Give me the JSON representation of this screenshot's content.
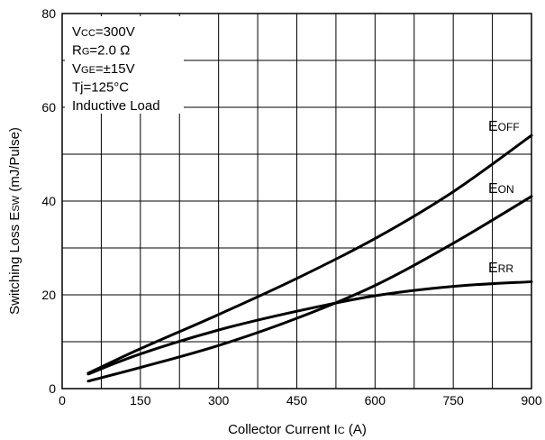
{
  "chart_data": {
    "type": "line",
    "xlabel": {
      "main": "Collector Current I",
      "sub": "C",
      "unit": "  (A)"
    },
    "ylabel": {
      "main": "Switching Loss E",
      "sub": "SW",
      "unit": " (mJ/Pulse)"
    },
    "xlim": [
      0,
      900
    ],
    "ylim": [
      0,
      80
    ],
    "x_ticks": [
      0,
      150,
      300,
      450,
      600,
      750,
      900
    ],
    "y_ticks": [
      0,
      20,
      40,
      60,
      80
    ],
    "x_grid_step": 75,
    "y_grid_step": 10,
    "grid": true,
    "conditions": [
      {
        "main": "V",
        "sub": "CC",
        "rest": "=300V"
      },
      {
        "main": "R",
        "sub": "G",
        "rest": "=2.0 Ω"
      },
      {
        "main": "V",
        "sub": "GE",
        "rest": "=±15V"
      },
      {
        "main": "Tj=125°C",
        "sub": "",
        "rest": ""
      },
      {
        "main": "Inductive Load",
        "sub": "",
        "rest": ""
      }
    ],
    "series": [
      {
        "main": "E",
        "sub": "OFF",
        "x": [
          50,
          150,
          300,
          450,
          600,
          750,
          900
        ],
        "y": [
          3.3,
          8.5,
          15.8,
          23.5,
          32,
          42,
          54
        ]
      },
      {
        "main": "E",
        "sub": "ON",
        "x": [
          50,
          150,
          300,
          450,
          600,
          750,
          900
        ],
        "y": [
          1.6,
          4.5,
          9.2,
          15,
          22,
          31,
          41
        ]
      },
      {
        "main": "E",
        "sub": "RR",
        "x": [
          50,
          150,
          300,
          450,
          600,
          750,
          900
        ],
        "y": [
          3.1,
          7.4,
          12.5,
          16.5,
          19.8,
          21.8,
          22.8
        ]
      }
    ]
  }
}
